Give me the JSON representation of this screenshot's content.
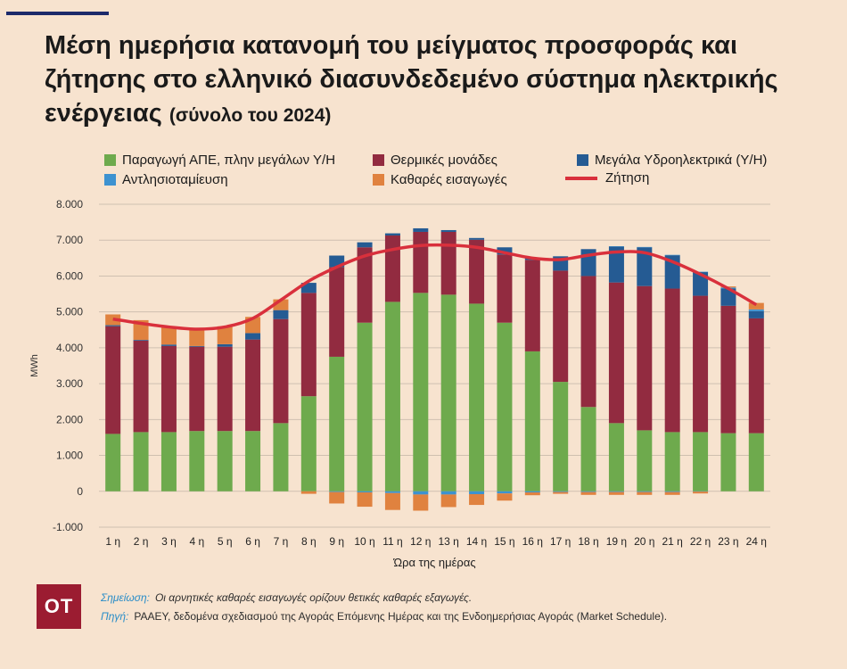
{
  "header": {
    "title": "Μέση ημερήσια κατανομή του μείγματος προσφοράς και ζήτησης στο ελληνικό διασυνδεδεμένο σύστημα ηλεκτρικής ενέργειας",
    "subtitle": "(σύνολο του 2024)"
  },
  "legend": {
    "res": "Παραγωγή ΑΠΕ, πλην μεγάλων Υ/Η",
    "thermal": "Θερμικές μονάδες",
    "hydro": "Μεγάλα Υδροηλεκτρικά (Υ/Η)",
    "pump": "Αντλησιοταμίευση",
    "imports": "Καθαρές εισαγωγές",
    "demand": "Ζήτηση"
  },
  "colors": {
    "res": "#6eaa4d",
    "thermal": "#922b40",
    "hydro": "#255b93",
    "pump": "#3d92d0",
    "imports": "#e0823f",
    "demand": "#d9303c",
    "grid": "#cfc0b0"
  },
  "chart_data": {
    "type": "bar",
    "stacked": true,
    "xlabel": "Ώρα της ημέρας",
    "ylabel": "MWh",
    "ylim": [
      -1000,
      8000
    ],
    "yticks": [
      -1000,
      0,
      1000,
      2000,
      3000,
      4000,
      5000,
      6000,
      7000,
      8000
    ],
    "ytick_labels": [
      "-1.000",
      "0",
      "1.000",
      "2.000",
      "3.000",
      "4.000",
      "5.000",
      "6.000",
      "7.000",
      "8.000"
    ],
    "categories": [
      "1 η",
      "2 η",
      "3 η",
      "4 η",
      "5 η",
      "6 η",
      "7 η",
      "8 η",
      "9 η",
      "10 η",
      "11 η",
      "12 η",
      "13 η",
      "14 η",
      "15 η",
      "16 η",
      "17 η",
      "18 η",
      "19 η",
      "20 η",
      "21 η",
      "22 η",
      "23 η",
      "24 η"
    ],
    "series": [
      {
        "key": "res",
        "name": "Παραγωγή ΑΠΕ, πλην μεγάλων Υ/Η",
        "values": [
          1600,
          1650,
          1650,
          1680,
          1680,
          1680,
          1900,
          2650,
          3750,
          4700,
          5280,
          5530,
          5480,
          5230,
          4700,
          3900,
          3050,
          2350,
          1900,
          1700,
          1650,
          1650,
          1620,
          1620
        ]
      },
      {
        "key": "thermal",
        "name": "Θερμικές μονάδες",
        "values": [
          3000,
          2550,
          2400,
          2350,
          2350,
          2550,
          2900,
          2880,
          2500,
          2100,
          1850,
          1700,
          1750,
          1780,
          1900,
          2550,
          3100,
          3650,
          3920,
          4020,
          4000,
          3800,
          3550,
          3200
        ]
      },
      {
        "key": "hydro",
        "name": "Μεγάλα Υδροηλεκτρικά (Υ/Η)",
        "values": [
          30,
          20,
          40,
          20,
          70,
          180,
          250,
          280,
          320,
          140,
          60,
          100,
          50,
          50,
          200,
          60,
          400,
          750,
          1000,
          1080,
          930,
          660,
          480,
          200
        ]
      },
      {
        "key": "pump",
        "name": "Αντλησιοταμίευση",
        "values": [
          0,
          0,
          0,
          0,
          0,
          0,
          0,
          0,
          0,
          0,
          0,
          0,
          0,
          0,
          0,
          0,
          0,
          0,
          10,
          10,
          10,
          10,
          30,
          50
        ]
      },
      {
        "key": "imports",
        "name": "Καθαρές εισαγωγές",
        "values": [
          300,
          550,
          500,
          500,
          500,
          450,
          300,
          0,
          0,
          0,
          0,
          0,
          0,
          0,
          0,
          0,
          0,
          0,
          0,
          0,
          0,
          0,
          30,
          180
        ]
      },
      {
        "key": "pumpneg",
        "name": "Αντλησιοταμίευση",
        "values": [
          0,
          0,
          0,
          0,
          0,
          0,
          0,
          0,
          -20,
          -30,
          -50,
          -90,
          -90,
          -80,
          -60,
          -30,
          -20,
          -20,
          -20,
          -20,
          -20,
          -10,
          0,
          0
        ]
      },
      {
        "key": "importsneg",
        "name": "Καθαρές εισαγωγές",
        "values": [
          0,
          0,
          0,
          0,
          0,
          0,
          0,
          -70,
          -320,
          -400,
          -470,
          -450,
          -350,
          -300,
          -200,
          -80,
          -50,
          -80,
          -80,
          -80,
          -80,
          -50,
          0,
          0
        ]
      }
    ],
    "demand": [
      4800,
      4680,
      4580,
      4520,
      4580,
      4820,
      5330,
      5860,
      6250,
      6560,
      6740,
      6850,
      6860,
      6800,
      6650,
      6500,
      6460,
      6580,
      6670,
      6650,
      6400,
      6050,
      5650,
      5200
    ]
  },
  "footer": {
    "logo_text": "ΟΤ",
    "note_label": "Σημείωση:",
    "note_text": "Οι αρνητικές καθαρές εισαγωγές ορίζουν θετικές καθαρές εξαγωγές.",
    "source_label": "Πηγή:",
    "source_text": "ΡΑΑΕΥ, δεδομένα σχεδιασμού της Αγοράς Επόμενης Ημέρας και της Ενδοημερήσιας Αγοράς (Market Schedule)."
  }
}
